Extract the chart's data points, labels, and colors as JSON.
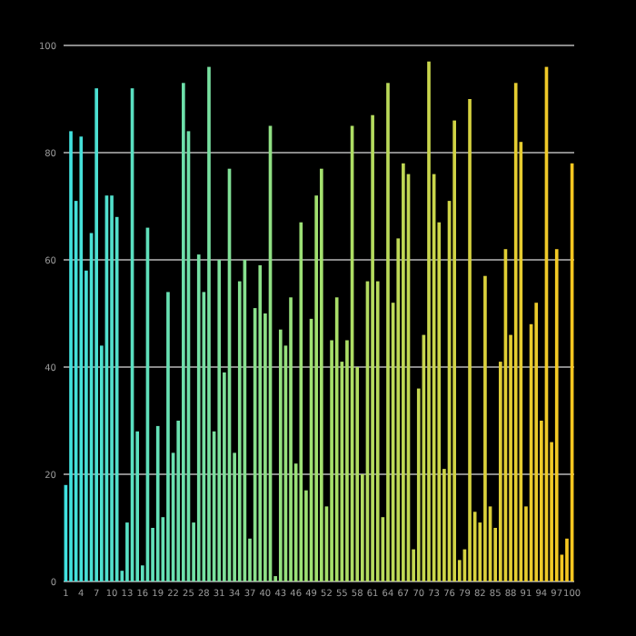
{
  "chart_data": {
    "type": "bar",
    "categories": [
      "1",
      null,
      null,
      "4",
      null,
      null,
      "7",
      null,
      null,
      "10",
      null,
      null,
      "13",
      null,
      null,
      "16",
      null,
      null,
      "19",
      null,
      null,
      "22",
      null,
      null,
      "25",
      null,
      null,
      "28",
      null,
      null,
      "31",
      null,
      null,
      "34",
      null,
      null,
      "37",
      null,
      null,
      "40",
      null,
      null,
      "43",
      null,
      null,
      "46",
      null,
      null,
      "49",
      null,
      null,
      "52",
      null,
      null,
      "55",
      null,
      null,
      "58",
      null,
      null,
      "61",
      null,
      null,
      "64",
      null,
      null,
      "67",
      null,
      null,
      "70",
      null,
      null,
      "73",
      null,
      null,
      "76",
      null,
      null,
      "79",
      null,
      null,
      "82",
      null,
      null,
      "85",
      null,
      null,
      "88",
      null,
      null,
      "91",
      null,
      null,
      "94",
      null,
      null,
      "97",
      null,
      null,
      "100"
    ],
    "values": [
      18,
      84,
      71,
      83,
      58,
      65,
      92,
      44,
      72,
      72,
      68,
      2,
      11,
      92,
      28,
      3,
      66,
      10,
      29,
      12,
      54,
      24,
      30,
      93,
      84,
      11,
      61,
      54,
      96,
      28,
      60,
      39,
      77,
      24,
      56,
      60,
      8,
      51,
      59,
      50,
      85,
      1,
      47,
      44,
      53,
      22,
      67,
      17,
      49,
      72,
      77,
      14,
      45,
      53,
      41,
      45,
      85,
      40,
      20,
      56,
      87,
      56,
      12,
      93,
      52,
      64,
      78,
      76,
      6,
      36,
      46,
      97,
      76,
      67,
      21,
      71,
      86,
      4,
      6,
      90,
      13,
      11,
      57,
      14,
      10,
      41,
      62,
      46,
      93,
      82,
      14,
      48,
      52,
      30,
      96,
      26,
      62,
      5,
      8,
      78
    ],
    "colors": [
      "#40e0e0",
      "#42e0de",
      "#44e0db",
      "#46e0d9",
      "#48e0d7",
      "#4ae0d4",
      "#4ce0d2",
      "#4ee0d0",
      "#50e0ce",
      "#52e0cb",
      "#54e0c9",
      "#56e0c7",
      "#58e0c4",
      "#5ae0c2",
      "#5ce0c0",
      "#5ee0be",
      "#60e0bb",
      "#62e0b9",
      "#64e0b7",
      "#66e0b4",
      "#68e0b2",
      "#6ae0b0",
      "#6ce0ad",
      "#6ee0ab",
      "#70e0a9",
      "#72e0a6",
      "#74e0a4",
      "#76e0a2",
      "#78e0a0",
      "#7ae09d",
      "#7ce09b",
      "#7ee099",
      "#80e096",
      "#82e094",
      "#84e092",
      "#86e08f",
      "#88e08d",
      "#8ae08b",
      "#8ce089",
      "#8ee086",
      "#90e084",
      "#92e082",
      "#94e07f",
      "#96e07d",
      "#98e07b",
      "#9ae078",
      "#9ce076",
      "#9ee074",
      "#a0e072",
      "#a2e06f",
      "#a4e06e",
      "#a6e06c",
      "#a7df6b",
      "#a9de69",
      "#abde68",
      "#acdd66",
      "#aedd64",
      "#b0dc63",
      "#b2dc61",
      "#b3db60",
      "#b5db5e",
      "#b7da5c",
      "#b8da5b",
      "#bad959",
      "#bcd958",
      "#bed856",
      "#bfd854",
      "#c1d753",
      "#c3d751",
      "#c4d650",
      "#c6d64e",
      "#c8d54c",
      "#c9d54b",
      "#cbd449",
      "#cdd448",
      "#ced346",
      "#d0d344",
      "#d2d243",
      "#d4d241",
      "#d5d140",
      "#d7d13e",
      "#d9d03c",
      "#dad03b",
      "#dccf39",
      "#decf38",
      "#dfce36",
      "#e1ce34",
      "#e3cd33",
      "#e5cd31",
      "#e6cc30",
      "#e8cc2e",
      "#eacb2c",
      "#ebcb2b",
      "#edca29",
      "#efca28",
      "#f0c926",
      "#f2c924",
      "#f4c823",
      "#f5c821",
      "#f7c720"
    ],
    "ylim": [
      0,
      100
    ],
    "yticks": [
      0,
      20,
      40,
      60,
      80,
      100
    ],
    "grid": "y"
  }
}
